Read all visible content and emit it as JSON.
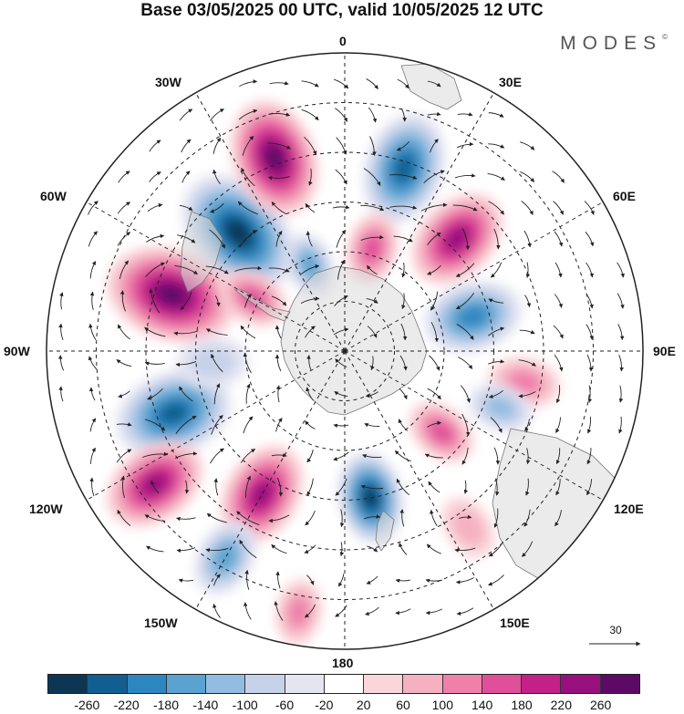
{
  "title": "Base 03/05/2025 00 UTC, valid 10/05/2025 12 UTC",
  "brand": "MODES",
  "brand_mark": "©",
  "longitude_labels": {
    "lon_0": "0",
    "lon_30e": "30E",
    "lon_60e": "60E",
    "lon_90e": "90E",
    "lon_120e": "120E",
    "lon_150e": "150E",
    "lon_180": "180",
    "lon_150w": "150W",
    "lon_120w": "120W",
    "lon_90w": "90W",
    "lon_60w": "60W",
    "lon_30w": "30W"
  },
  "reference_vector": {
    "value": "30"
  },
  "colorbar": {
    "colors": [
      "#0c3654",
      "#105f90",
      "#2e86c1",
      "#5aa2cf",
      "#93bde0",
      "#c6d1ea",
      "#e5e5f2",
      "#ffffff",
      "#fad5da",
      "#f5b1c1",
      "#ef80aa",
      "#e04f9a",
      "#c42088",
      "#98107e",
      "#5c0a66"
    ],
    "tick_labels": [
      "-260",
      "-220",
      "-180",
      "-140",
      "-100",
      "-60",
      "-20",
      "20",
      "60",
      "100",
      "140",
      "180",
      "220",
      "260"
    ]
  },
  "anomalies": [
    {
      "lon": -42,
      "colat": 48,
      "value": -260,
      "size": 1.0
    },
    {
      "lon": -20,
      "colat": 62,
      "value": 250,
      "size": 0.9
    },
    {
      "lon": 18,
      "colat": 58,
      "value": -200,
      "size": 0.85
    },
    {
      "lon": 45,
      "colat": 48,
      "value": 200,
      "size": 0.8
    },
    {
      "lon": -72,
      "colat": 55,
      "value": 270,
      "size": 1.0
    },
    {
      "lon": -60,
      "colat": 32,
      "value": 150,
      "size": 0.55
    },
    {
      "lon": -22,
      "colat": 28,
      "value": -120,
      "size": 0.5
    },
    {
      "lon": 15,
      "colat": 32,
      "value": 120,
      "size": 0.55
    },
    {
      "lon": 75,
      "colat": 40,
      "value": -170,
      "size": 0.75
    },
    {
      "lon": 100,
      "colat": 55,
      "value": 110,
      "size": 0.55
    },
    {
      "lon": 110,
      "colat": 50,
      "value": -110,
      "size": 0.5
    },
    {
      "lon": 130,
      "colat": 38,
      "value": 120,
      "size": 0.55
    },
    {
      "lon": -110,
      "colat": 55,
      "value": -200,
      "size": 0.9
    },
    {
      "lon": -150,
      "colat": 50,
      "value": 230,
      "size": 0.8
    },
    {
      "lon": 170,
      "colat": 45,
      "value": -240,
      "size": 0.7
    },
    {
      "lon": -125,
      "colat": 70,
      "value": 210,
      "size": 0.8
    },
    {
      "lon": -150,
      "colat": 72,
      "value": -130,
      "size": 0.6
    },
    {
      "lon": -170,
      "colat": 80,
      "value": 80,
      "size": 0.5
    },
    {
      "lon": 145,
      "colat": 65,
      "value": 70,
      "size": 0.5
    },
    {
      "lon": -95,
      "colat": 40,
      "value": -60,
      "size": 0.55
    }
  ]
}
